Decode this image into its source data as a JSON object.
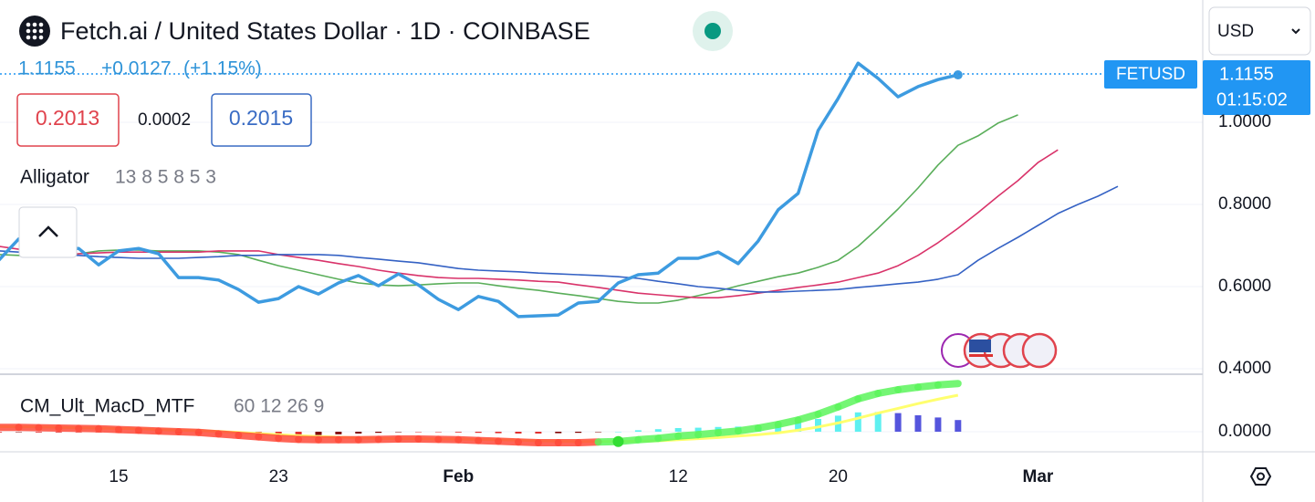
{
  "header": {
    "title": "Fetch.ai / United States Dollar · 1D · COINBASE",
    "change": "+0.0127",
    "change_pct": "(+1.15%)",
    "bid": "0.2013",
    "spread": "0.0002",
    "ask": "0.2015",
    "currency": "USD",
    "countdown": "01:15:02"
  },
  "chart_data": [
    {
      "type": "line",
      "title": "Alligator",
      "subtitle": "13 8 5 8 5 3",
      "categories": [
        null,
        null,
        null,
        null,
        null,
        null,
        "15",
        null,
        null,
        null,
        null,
        null,
        null,
        null,
        "23",
        null,
        null,
        null,
        null,
        null,
        null,
        null,
        null,
        "Feb",
        null,
        null,
        null,
        null,
        null,
        null,
        null,
        null,
        null,
        null,
        "12",
        null,
        null,
        null,
        null,
        null,
        null,
        null,
        "20",
        null,
        null,
        null,
        null,
        null,
        null,
        null,
        null,
        null,
        "Mar",
        null,
        null,
        null,
        null
      ],
      "ylim": [
        0.3867,
        1.2978
      ],
      "yticks": [
        {
          "value": 0.4,
          "label": "0.4000"
        },
        {
          "value": 0.6,
          "label": "0.6000"
        },
        {
          "value": 0.8,
          "label": "0.8000"
        },
        {
          "value": 1.0,
          "label": "1.0000"
        }
      ],
      "series": [
        {
          "name": "FETUSD",
          "color": "#3d9be0",
          "values": [
            0.664,
            0.716,
            0.724,
            0.693,
            0.693,
            0.653,
            0.687,
            0.693,
            0.68,
            0.622,
            0.622,
            0.616,
            0.593,
            0.562,
            0.571,
            0.6,
            0.582,
            0.609,
            0.627,
            0.602,
            0.631,
            0.604,
            0.569,
            0.544,
            0.576,
            0.564,
            0.527,
            0.529,
            0.531,
            0.56,
            0.564,
            0.609,
            0.629,
            0.633,
            0.669,
            0.669,
            0.684,
            0.656,
            0.711,
            0.787,
            0.827,
            0.98,
            1.058,
            1.144,
            1.107,
            1.062,
            1.087,
            1.104,
            1.1155,
            null,
            null,
            null,
            null,
            null,
            null,
            null,
            null
          ]
        },
        {
          "color": "#3562c4",
          "values": [
            0.687,
            0.684,
            0.68,
            0.678,
            0.676,
            0.673,
            0.671,
            0.669,
            0.669,
            0.669,
            0.671,
            0.673,
            0.676,
            0.676,
            0.678,
            0.678,
            0.678,
            0.676,
            0.671,
            0.667,
            0.662,
            0.658,
            0.651,
            0.644,
            0.64,
            0.638,
            0.636,
            0.633,
            0.631,
            0.629,
            0.627,
            0.624,
            0.62,
            0.613,
            0.607,
            0.6,
            0.596,
            0.591,
            0.587,
            0.587,
            0.589,
            0.591,
            0.593,
            0.598,
            0.602,
            0.607,
            0.611,
            0.618,
            0.629,
            0.664,
            0.693,
            0.72,
            0.749,
            0.778,
            0.8,
            0.82,
            0.844
          ]
        },
        {
          "color": "#d9336a",
          "values": [
            0.698,
            0.691,
            0.684,
            0.68,
            0.68,
            0.682,
            0.684,
            0.684,
            0.684,
            0.684,
            0.684,
            0.687,
            0.687,
            0.687,
            0.678,
            0.671,
            0.664,
            0.656,
            0.649,
            0.64,
            0.633,
            0.627,
            0.622,
            0.62,
            0.62,
            0.618,
            0.616,
            0.613,
            0.611,
            0.604,
            0.598,
            0.591,
            0.584,
            0.58,
            0.576,
            0.573,
            0.573,
            0.578,
            0.584,
            0.591,
            0.598,
            0.604,
            0.611,
            0.622,
            0.633,
            0.651,
            0.676,
            0.707,
            0.742,
            0.78,
            0.82,
            0.858,
            0.902,
            0.933,
            null,
            null,
            null
          ]
        },
        {
          "color": "#5aae5a",
          "values": [
            0.678,
            0.676,
            0.674,
            0.676,
            0.68,
            0.687,
            0.689,
            0.689,
            0.687,
            0.687,
            0.687,
            0.684,
            0.678,
            0.664,
            0.651,
            0.64,
            0.629,
            0.618,
            0.609,
            0.604,
            0.602,
            0.604,
            0.607,
            0.609,
            0.609,
            0.602,
            0.596,
            0.591,
            0.584,
            0.578,
            0.571,
            0.564,
            0.56,
            0.56,
            0.567,
            0.578,
            0.589,
            0.602,
            0.613,
            0.624,
            0.633,
            0.647,
            0.664,
            0.698,
            0.742,
            0.789,
            0.84,
            0.896,
            0.944,
            0.967,
            0.998,
            1.018,
            null,
            null,
            null,
            null,
            null
          ]
        }
      ]
    },
    {
      "type": "macd",
      "title": "CM_Ult_MacD_MTF",
      "subtitle": "60 12 26 9",
      "ylim": [
        -0.0525,
        0.1525
      ],
      "yticks": [
        {
          "value": 0,
          "label": "0.0000"
        }
      ],
      "colors": {
        "macd_up": "#5cf55c",
        "macd_down": "#ff4a3a",
        "signal": "#ffff6e",
        "hist_up_rising": "#5ef0f0",
        "hist_up_falling": "#5555dd",
        "hist_down_falling": "#e03030",
        "hist_down_rising": "#800000"
      },
      "series": [
        {
          "values": [
            0.012,
            0.012,
            0.011,
            0.01,
            0.009,
            0.008,
            0.006,
            0.004,
            0.002,
            0.0,
            -0.002,
            -0.006,
            -0.01,
            -0.014,
            -0.018,
            -0.021,
            -0.022,
            -0.022,
            -0.022,
            -0.021,
            -0.02,
            -0.02,
            -0.021,
            -0.022,
            -0.024,
            -0.026,
            -0.028,
            -0.03,
            -0.03,
            -0.03,
            -0.028,
            -0.027,
            -0.022,
            -0.018,
            -0.012,
            -0.008,
            -0.003,
            0.002,
            0.01,
            0.02,
            0.032,
            0.048,
            0.068,
            0.09,
            0.105,
            0.115,
            0.122,
            0.128,
            0.132
          ]
        },
        {
          "values": [
            0.014,
            0.013,
            0.013,
            0.012,
            0.011,
            0.01,
            0.009,
            0.008,
            0.006,
            0.004,
            0.003,
            0.001,
            -0.002,
            -0.005,
            -0.008,
            -0.011,
            -0.013,
            -0.015,
            -0.017,
            -0.018,
            -0.019,
            -0.019,
            -0.02,
            -0.02,
            -0.021,
            -0.022,
            -0.023,
            -0.025,
            -0.026,
            -0.027,
            -0.027,
            -0.027,
            -0.026,
            -0.025,
            -0.022,
            -0.019,
            -0.016,
            -0.012,
            -0.008,
            -0.003,
            0.004,
            0.013,
            0.024,
            0.037,
            0.051,
            0.064,
            0.077,
            0.089,
            0.1
          ]
        },
        {
          "values": [
            -0.002,
            -0.001,
            -0.002,
            -0.002,
            -0.002,
            -0.002,
            -0.003,
            -0.004,
            -0.004,
            -0.004,
            -0.005,
            -0.007,
            -0.008,
            -0.009,
            -0.01,
            -0.01,
            -0.009,
            -0.007,
            -0.005,
            -0.003,
            -0.001,
            -0.001,
            -0.001,
            -0.002,
            -0.003,
            -0.004,
            -0.005,
            -0.005,
            -0.004,
            -0.003,
            -0.001,
            0.0,
            0.004,
            0.007,
            0.01,
            0.011,
            0.013,
            0.014,
            0.018,
            0.023,
            0.028,
            0.035,
            0.044,
            0.053,
            0.054,
            0.051,
            0.045,
            0.039,
            0.032
          ]
        }
      ]
    }
  ]
}
